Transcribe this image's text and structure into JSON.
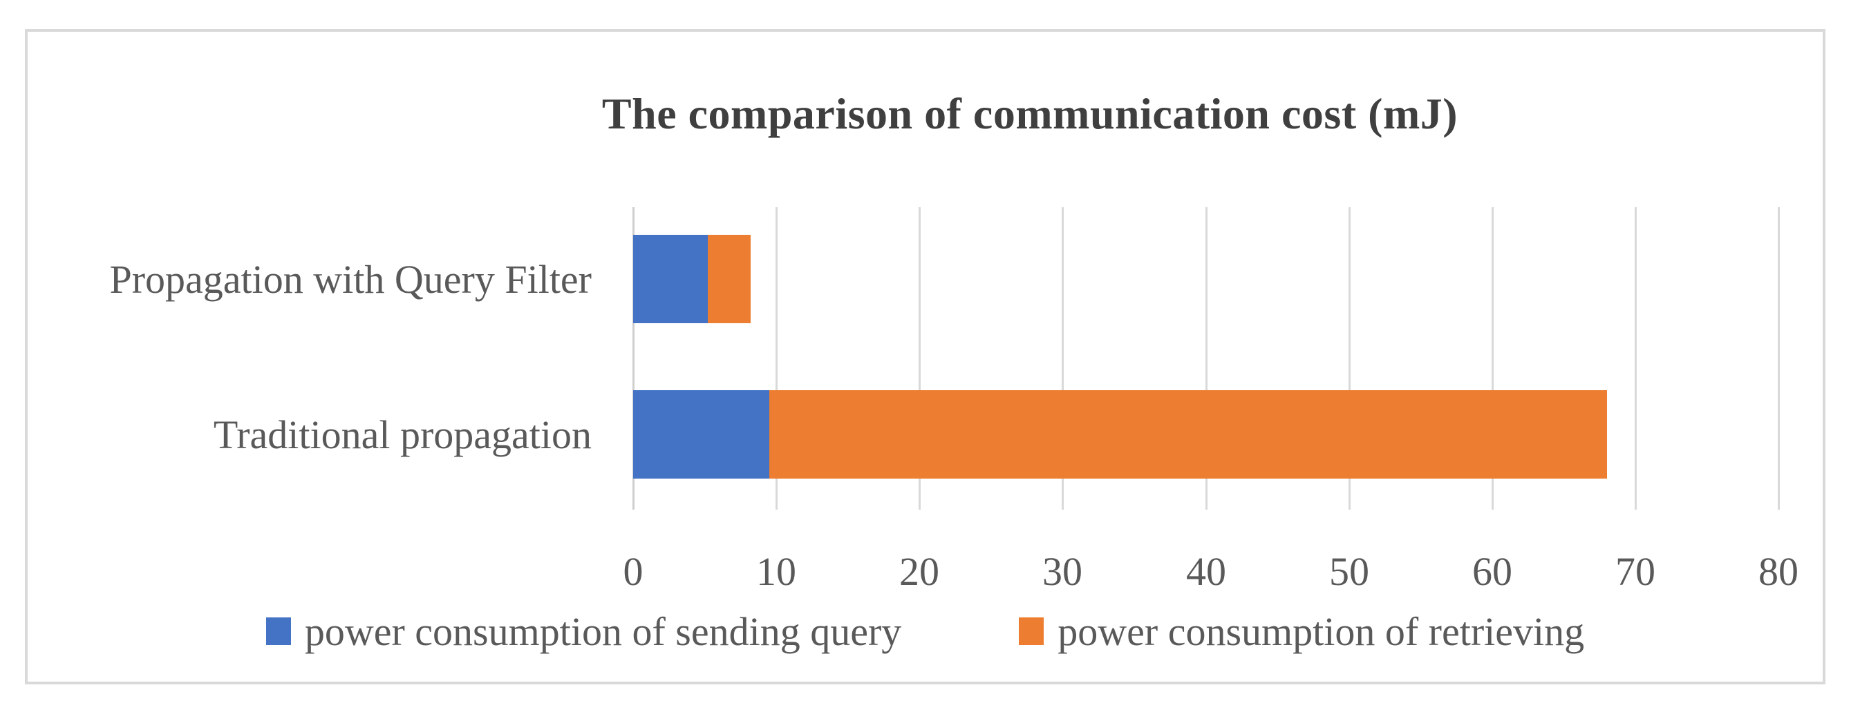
{
  "chart_data": {
    "type": "bar",
    "orientation": "horizontal",
    "stacked": true,
    "title": "The comparison of communication cost (mJ)",
    "categories": [
      "Propagation with Query Filter",
      "Traditional propagation"
    ],
    "series": [
      {
        "name": "power consumption of sending query",
        "color": "#4472C4",
        "values": [
          5.2,
          9.5
        ]
      },
      {
        "name": "power consumption of retrieving",
        "color": "#ED7D31",
        "values": [
          3.0,
          58.5
        ]
      }
    ],
    "category_totals": [
      8.2,
      68.0
    ],
    "x_axis": {
      "min": 0,
      "max": 80,
      "tick_interval": 10,
      "ticks": [
        0,
        10,
        20,
        30,
        40,
        50,
        60,
        70,
        80
      ]
    },
    "legend_position": "bottom",
    "grid": true,
    "colors": {
      "gridline": "#d9d9d9",
      "frame_border": "#d9d9d9",
      "title_text": "#3f3f3f",
      "label_text": "#595959"
    }
  }
}
